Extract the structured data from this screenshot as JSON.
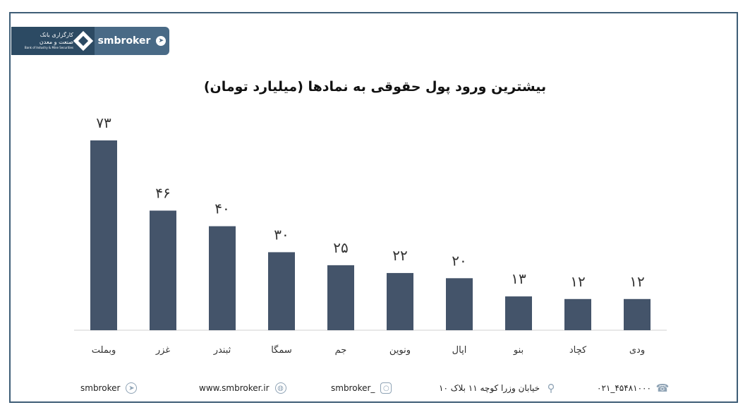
{
  "brand": {
    "bank_name_line1": "کارگزاری بانک",
    "bank_name_line2": "صنعت و معدن",
    "bank_name_en": "Bank of Industry & Mine Securities",
    "channel": "smbroker",
    "accent": "#496a86",
    "dark": "#2c4a63"
  },
  "chart_data": {
    "type": "bar",
    "title": "بیشترین ورود پول حقوقی به نمادها (میلیارد تومان)",
    "categories": [
      "وبملت",
      "غزر",
      "ثبندر",
      "سمگا",
      "جم",
      "ونوین",
      "اپال",
      "بنو",
      "کچاد",
      "ودی"
    ],
    "values": [
      73,
      46,
      40,
      30,
      25,
      22,
      20,
      13,
      12,
      12
    ],
    "value_labels": [
      "۷۳",
      "۴۶",
      "۴۰",
      "۳۰",
      "۲۵",
      "۲۲",
      "۲۰",
      "۱۳",
      "۱۲",
      "۱۲"
    ],
    "ylim": [
      0,
      73
    ],
    "bar_color": "#44546a",
    "grid": false,
    "legend": "none"
  },
  "footer": {
    "telegram": "smbroker",
    "website": "www.smbroker.ir",
    "instagram": "smbroker_",
    "address": "خیابان وزرا کوچه ۱۱ بلاک ۱۰",
    "phone": "۰۲۱_۴۵۴۸۱۰۰۰",
    "icons": [
      "telegram-icon",
      "globe-icon",
      "instagram-icon",
      "location-pin-icon",
      "phone-icon"
    ]
  }
}
